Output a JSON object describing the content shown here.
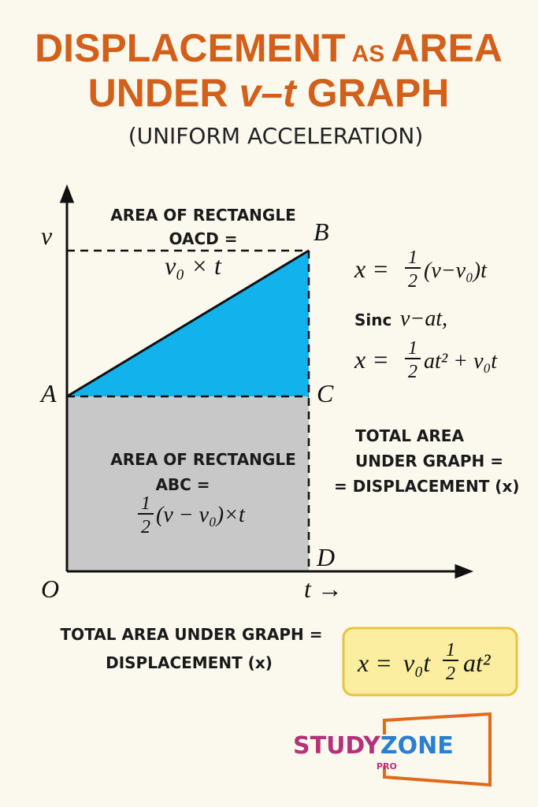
{
  "title": {
    "part1": "DISPLACEMENT",
    "part2": "AS",
    "part3": "AREA",
    "part4": "UNDER",
    "part5": "v–t",
    "part6": "GRAPH"
  },
  "subtitle": "(UNIFORM ACCELERATION)",
  "graph": {
    "axis_v": "v",
    "axis_t": "t →",
    "O": "O",
    "A": "A",
    "B": "B",
    "C": "C",
    "D": "D"
  },
  "upper_area": {
    "line1": "AREA OF RECTANGLE",
    "line2": "OACD =",
    "formula": "v₀ × t"
  },
  "lower_area": {
    "line1": "AREA OF RECTANGLE",
    "line2": "ABC =",
    "num": "1",
    "den": "2",
    "formula": "(v − v₀)×t"
  },
  "equations": [
    {
      "lhs": "x =",
      "num": "1",
      "den": "2",
      "rhs": "(v−v₀)t"
    },
    {
      "text": "Sinc",
      "math": "v−at,"
    },
    {
      "lhs": "x =",
      "num": "1",
      "den": "2",
      "rhs": "at² + v₀t"
    }
  ],
  "side_note": [
    "TOTAL AREA",
    "UNDER GRAPH =",
    "= DISPLACEMENT (x)"
  ],
  "summary": {
    "line1": "TOTAL AREA UNDER GRAPH =",
    "line2": "DISPLACEMENT (x)"
  },
  "result": {
    "lhs": "x =",
    "term1": "v₀t",
    "num": "1",
    "den": "2",
    "term2": "at²"
  },
  "logo": {
    "study": "STUDY",
    "zone": "ZONE",
    "pro": "PRO"
  }
}
